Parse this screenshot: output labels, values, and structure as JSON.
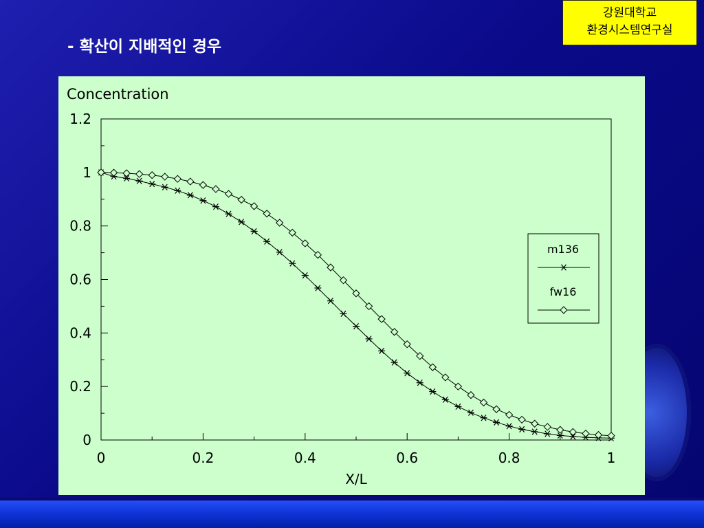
{
  "badge": {
    "line1": "강원대학교",
    "line2": "환경시스템연구실"
  },
  "slide": {
    "title": "- 확산이 지배적인 경우"
  },
  "colors": {
    "panel_bg": "#ccffcc",
    "badge_bg": "#ffff00",
    "background": "#0a0a8a"
  },
  "chart_data": {
    "type": "line",
    "ylabel": "Concentration",
    "xlabel": "X/L",
    "xlim": [
      0,
      1
    ],
    "ylim": [
      0,
      1.2
    ],
    "x_ticks": [
      "0",
      "0.2",
      "0.4",
      "0.6",
      "0.8",
      "1"
    ],
    "y_ticks": [
      "0",
      "0.2",
      "0.4",
      "0.6",
      "0.8",
      "1",
      "1.2"
    ],
    "grid": false,
    "legend_position": "right",
    "series": [
      {
        "name": "m136",
        "marker": "asterisk",
        "x": [
          0,
          0.025,
          0.05,
          0.075,
          0.1,
          0.125,
          0.15,
          0.175,
          0.2,
          0.225,
          0.25,
          0.275,
          0.3,
          0.325,
          0.35,
          0.375,
          0.4,
          0.425,
          0.45,
          0.475,
          0.5,
          0.525,
          0.55,
          0.575,
          0.6,
          0.625,
          0.65,
          0.675,
          0.7,
          0.725,
          0.75,
          0.775,
          0.8,
          0.825,
          0.85,
          0.875,
          0.9,
          0.925,
          0.95,
          0.975,
          1
        ],
        "y": [
          1.0,
          0.985,
          0.978,
          0.968,
          0.957,
          0.945,
          0.932,
          0.915,
          0.895,
          0.872,
          0.845,
          0.815,
          0.78,
          0.742,
          0.702,
          0.66,
          0.615,
          0.568,
          0.52,
          0.472,
          0.425,
          0.378,
          0.333,
          0.29,
          0.25,
          0.214,
          0.181,
          0.151,
          0.125,
          0.102,
          0.083,
          0.066,
          0.052,
          0.04,
          0.031,
          0.023,
          0.017,
          0.013,
          0.01,
          0.008,
          0.007
        ]
      },
      {
        "name": "fw16",
        "marker": "diamond",
        "x": [
          0,
          0.025,
          0.05,
          0.075,
          0.1,
          0.125,
          0.15,
          0.175,
          0.2,
          0.225,
          0.25,
          0.275,
          0.3,
          0.325,
          0.35,
          0.375,
          0.4,
          0.425,
          0.45,
          0.475,
          0.5,
          0.525,
          0.55,
          0.575,
          0.6,
          0.625,
          0.65,
          0.675,
          0.7,
          0.725,
          0.75,
          0.775,
          0.8,
          0.825,
          0.85,
          0.875,
          0.9,
          0.925,
          0.95,
          0.975,
          1
        ],
        "y": [
          1.0,
          0.999,
          0.997,
          0.994,
          0.99,
          0.984,
          0.976,
          0.966,
          0.953,
          0.938,
          0.92,
          0.898,
          0.874,
          0.846,
          0.812,
          0.775,
          0.735,
          0.692,
          0.645,
          0.597,
          0.548,
          0.5,
          0.452,
          0.404,
          0.358,
          0.314,
          0.272,
          0.234,
          0.2,
          0.168,
          0.14,
          0.115,
          0.094,
          0.076,
          0.061,
          0.049,
          0.038,
          0.03,
          0.024,
          0.019,
          0.016
        ]
      }
    ]
  }
}
